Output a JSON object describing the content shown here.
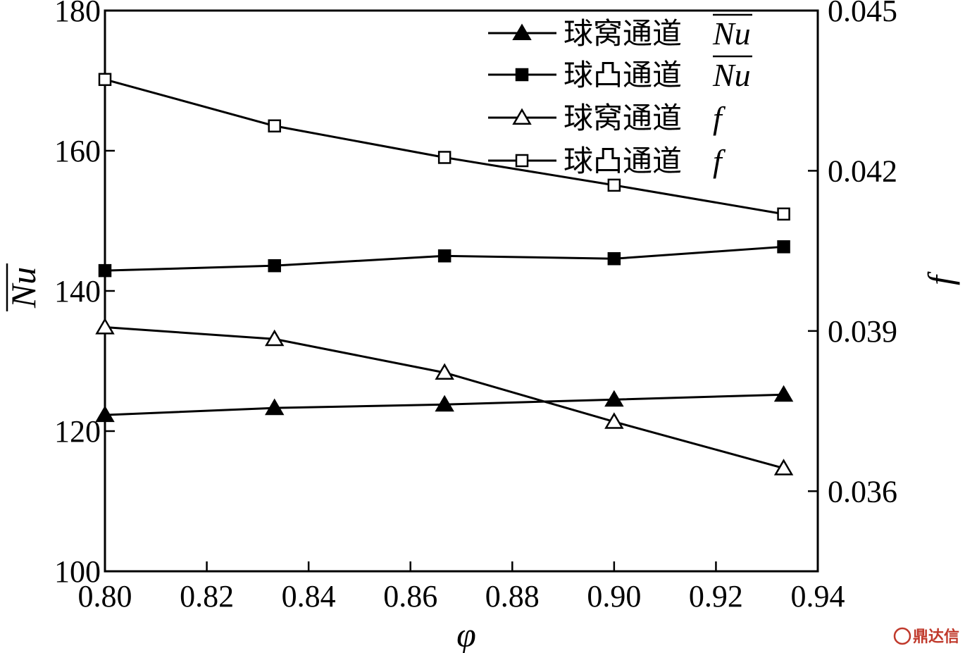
{
  "chart_data": {
    "type": "line",
    "x": [
      0.8,
      0.8333,
      0.8667,
      0.9,
      0.9333
    ],
    "xlabel": "φ",
    "xlim": [
      0.8,
      0.94
    ],
    "xticks": [
      "0.80",
      "0.82",
      "0.84",
      "0.86",
      "0.88",
      "0.90",
      "0.92",
      "0.94"
    ],
    "ylabel_left": "Nu",
    "ylim_left": [
      100,
      180
    ],
    "yticks_left": [
      "100",
      "120",
      "140",
      "160",
      "180"
    ],
    "ylabel_right": "f",
    "ylim_right": [
      0.0345,
      0.045
    ],
    "yticks_right": [
      "0.036",
      "0.039",
      "0.042",
      "0.045"
    ],
    "grid": false,
    "legend_position": "top-right",
    "series": [
      {
        "name": "球窝通道Nu",
        "label_cn": "球窝通道",
        "label_sym": "Nu",
        "overline": true,
        "marker": "triangle-filled",
        "axis": "left",
        "values": [
          122.3,
          123.3,
          123.8,
          124.5,
          125.2
        ]
      },
      {
        "name": "球凸通道Nu",
        "label_cn": "球凸通道",
        "label_sym": "Nu",
        "overline": true,
        "marker": "square-filled",
        "axis": "left",
        "values": [
          142.9,
          143.6,
          145.0,
          144.6,
          146.3
        ]
      },
      {
        "name": "球窝通道f",
        "label_cn": "球窝通道",
        "label_sym": "f",
        "overline": false,
        "marker": "triangle-open",
        "axis": "right",
        "values": [
          0.03907,
          0.03885,
          0.03822,
          0.0373,
          0.03643
        ]
      },
      {
        "name": "球凸通道f",
        "label_cn": "球凸通道",
        "label_sym": "f",
        "overline": false,
        "marker": "square-open",
        "axis": "right",
        "values": [
          0.04371,
          0.04284,
          0.04225,
          0.04173,
          0.04119
        ]
      }
    ]
  },
  "watermark": {
    "text": "鼎达信",
    "color": "#c0392b"
  }
}
